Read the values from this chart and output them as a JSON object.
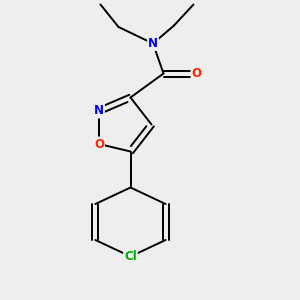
{
  "background_color": "#eeeeee",
  "bond_color": "#000000",
  "figsize": [
    3.0,
    3.0
  ],
  "dpi": 100,
  "atoms": {
    "N": {
      "color": "#0000ee"
    },
    "O": {
      "color": "#ff2200"
    },
    "Cl": {
      "color": "#00aa00"
    },
    "C": {
      "color": "#000000"
    }
  },
  "font_size": 8.5
}
